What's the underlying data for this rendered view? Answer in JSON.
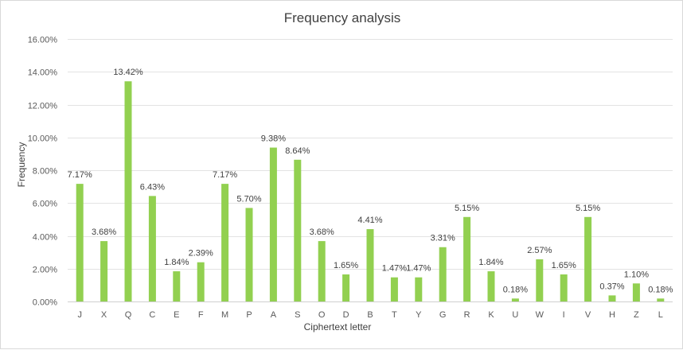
{
  "chart_data": {
    "type": "bar",
    "title": "Frequency analysis",
    "xlabel": "Ciphertext letter",
    "ylabel": "Frequency",
    "categories": [
      "J",
      "X",
      "Q",
      "C",
      "E",
      "F",
      "M",
      "P",
      "A",
      "S",
      "O",
      "D",
      "B",
      "T",
      "Y",
      "G",
      "R",
      "K",
      "U",
      "W",
      "I",
      "V",
      "H",
      "Z",
      "L"
    ],
    "values": [
      7.17,
      3.68,
      13.42,
      6.43,
      1.84,
      2.39,
      7.17,
      5.7,
      9.38,
      8.64,
      3.68,
      1.65,
      4.41,
      1.47,
      1.47,
      3.31,
      5.15,
      1.84,
      0.18,
      2.57,
      1.65,
      5.15,
      0.37,
      1.1,
      0.18
    ],
    "data_labels": [
      "7.17%",
      "3.68%",
      "13.42%",
      "6.43%",
      "1.84%",
      "2.39%",
      "7.17%",
      "5.70%",
      "9.38%",
      "8.64%",
      "3.68%",
      "1.65%",
      "4.41%",
      "1.47%",
      "1.47%",
      "3.31%",
      "5.15%",
      "1.84%",
      "0.18%",
      "2.57%",
      "1.65%",
      "5.15%",
      "0.37%",
      "1.10%",
      "0.18%"
    ],
    "ylim": [
      0,
      16
    ],
    "yticks": [
      0,
      2,
      4,
      6,
      8,
      10,
      12,
      14,
      16
    ],
    "ytick_labels": [
      "0.00%",
      "2.00%",
      "4.00%",
      "6.00%",
      "8.00%",
      "10.00%",
      "12.00%",
      "14.00%",
      "16.00%"
    ],
    "grid": true,
    "bar_color": "#92d050"
  }
}
